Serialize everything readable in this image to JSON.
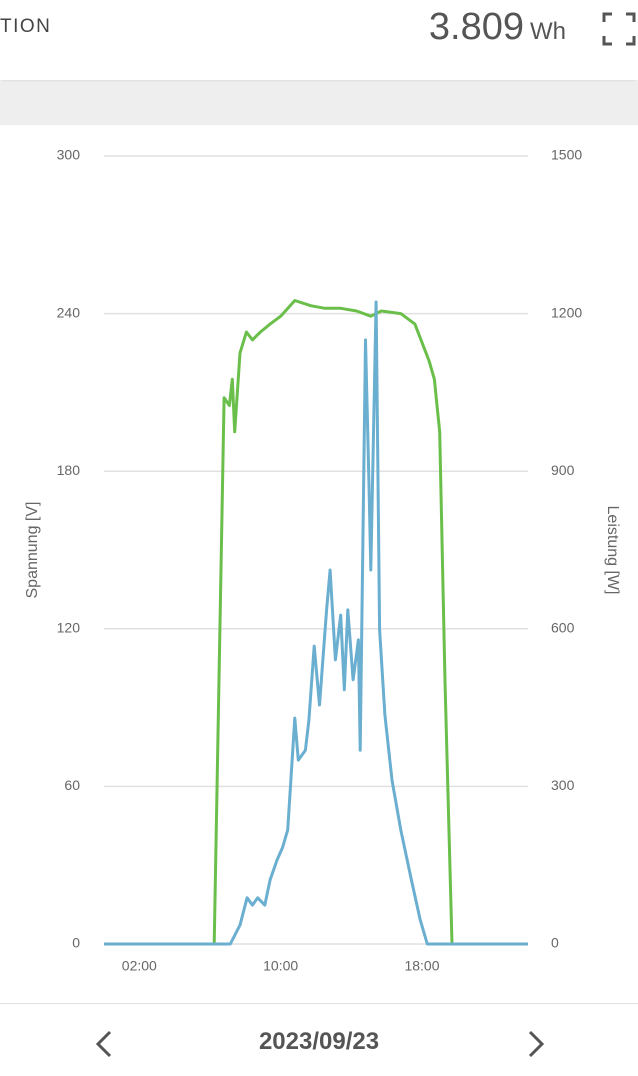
{
  "header": {
    "title": "TION",
    "energy": "3.809",
    "unit": "Wh"
  },
  "chart_data": {
    "type": "line",
    "y_label": "Spannung [V]",
    "y2_label": "Leistung [W]",
    "xlim": [
      0,
      24
    ],
    "xticks": [
      {
        "value": 2,
        "label": "02:00"
      },
      {
        "value": 10,
        "label": "10:00"
      },
      {
        "value": 18,
        "label": "18:00"
      }
    ],
    "ylim": [
      0,
      300
    ],
    "yticks": [
      0,
      60,
      120,
      180,
      240,
      300
    ],
    "y2lim": [
      0,
      1500
    ],
    "y2ticks": [
      0,
      300,
      600,
      900,
      1200,
      1500
    ],
    "grid": true,
    "series": [
      {
        "name": "Spannung",
        "color": "#6abf4b",
        "x": [
          0,
          6.24,
          6.8,
          7.1,
          7.26,
          7.4,
          7.7,
          8.06,
          8.4,
          8.85,
          9.4,
          10,
          10.8,
          11.7,
          12.5,
          13.4,
          14.3,
          15.1,
          15.7,
          16.8,
          17.6,
          18.4,
          18.7,
          18.85,
          19.0,
          19.3,
          19.7,
          24
        ],
        "values": [
          0,
          0,
          208,
          205,
          215,
          195,
          225,
          233,
          230,
          233,
          236,
          239,
          245,
          243,
          242,
          242,
          241,
          239,
          241,
          240,
          236,
          222,
          215,
          205,
          195,
          100,
          0,
          0
        ]
      },
      {
        "name": "Leistung",
        "color": "#6aaed0",
        "axis": "y2",
        "x": [
          0,
          7.15,
          7.7,
          8.1,
          8.4,
          8.7,
          9.1,
          9.4,
          9.8,
          10.1,
          10.4,
          10.8,
          11.0,
          11.4,
          11.6,
          11.9,
          12.2,
          12.6,
          12.8,
          13.1,
          13.4,
          13.6,
          13.8,
          14.1,
          14.4,
          14.5,
          14.8,
          15.0,
          15.1,
          15.4,
          15.6,
          15.9,
          16.3,
          16.8,
          17.4,
          17.9,
          18.3,
          24
        ],
        "values": [
          0,
          0,
          36,
          88,
          74,
          88,
          74,
          122,
          160,
          183,
          217,
          430,
          350,
          369,
          426,
          567,
          455,
          636,
          712,
          541,
          626,
          484,
          636,
          503,
          579,
          369,
          1150,
          874,
          712,
          1222,
          598,
          436,
          312,
          217,
          122,
          46,
          0,
          0
        ]
      }
    ]
  },
  "footer": {
    "date": "2023/09/23"
  }
}
